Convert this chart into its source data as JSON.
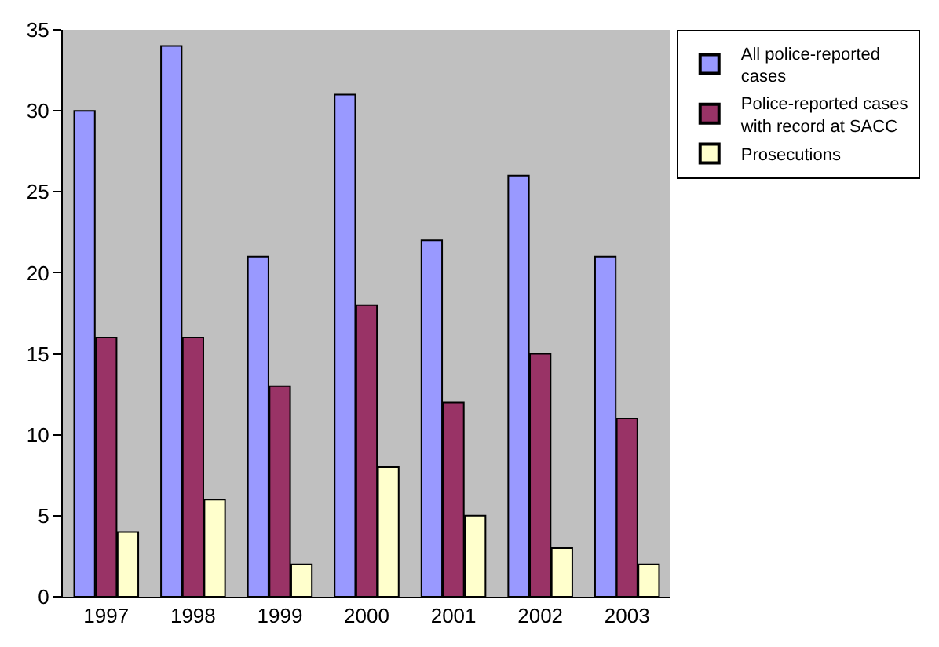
{
  "chart_data": {
    "type": "bar",
    "categories": [
      "1997",
      "1998",
      "1999",
      "2000",
      "2001",
      "2002",
      "2003"
    ],
    "series": [
      {
        "name": "All police-reported cases",
        "color": "#9999ff",
        "values": [
          30,
          34,
          21,
          31,
          22,
          26,
          21
        ]
      },
      {
        "name": "Police-reported cases with record at SACC",
        "color": "#993366",
        "values": [
          16,
          16,
          13,
          18,
          12,
          15,
          11
        ]
      },
      {
        "name": "Prosecutions",
        "color": "#ffffcc",
        "values": [
          4,
          6,
          2,
          8,
          5,
          3,
          2
        ]
      }
    ],
    "ylim": [
      0,
      35
    ],
    "yticks": [
      0,
      5,
      10,
      15,
      20,
      25,
      30,
      35
    ],
    "grid": false,
    "legend": "top right"
  }
}
